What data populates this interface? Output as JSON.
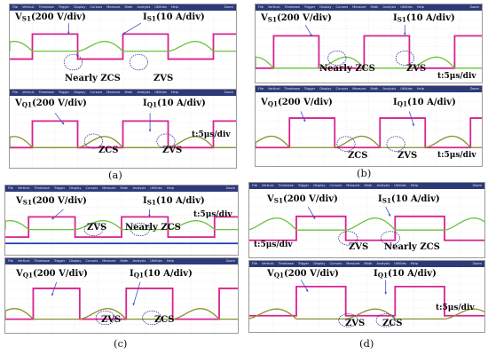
{
  "menu": {
    "items": [
      "File",
      "Vertical",
      "Timebase",
      "Trigger",
      "Display",
      "Cursors",
      "Measure",
      "Math",
      "Analysis",
      "Utilities",
      "Help"
    ],
    "zoom": "Zoom"
  },
  "panels": [
    {
      "label": "(a)",
      "scopes": [
        {
          "v_main": "V",
          "v_sub": "S1",
          "v_rest": "(200 V/div)",
          "i_main": "I",
          "i_sub": "S1",
          "i_rest": "(10 A/div)",
          "ann1": "Nearly ZCS",
          "ann2": "ZVS",
          "time": ""
        },
        {
          "v_main": "V",
          "v_sub": "Q1",
          "v_rest": "(200 V/div)",
          "i_main": "I",
          "i_sub": "Q1",
          "i_rest": "(10 A/div)",
          "ann1": "ZCS",
          "ann2": "ZVS",
          "time": "t:5μs/div"
        }
      ]
    },
    {
      "label": "(b)",
      "scopes": [
        {
          "v_main": "V",
          "v_sub": "S1",
          "v_rest": "(200 V/div)",
          "i_main": "I",
          "i_sub": "S1",
          "i_rest": "(10 A/div)",
          "ann1": "Nearly ZCS",
          "ann2": "ZVS",
          "time": "t:5μs/div"
        },
        {
          "v_main": "V",
          "v_sub": "Q1",
          "v_rest": "(200 V/div)",
          "i_main": "I",
          "i_sub": "Q1",
          "i_rest": "(10 A/div)",
          "ann1": "ZCS",
          "ann2": "ZVS",
          "time": "t:5μs/div"
        }
      ]
    },
    {
      "label": "(c)",
      "scopes": [
        {
          "v_main": "V",
          "v_sub": "S1",
          "v_rest": "(200 V/div)",
          "i_main": "I",
          "i_sub": "S1",
          "i_rest": "(10 A/div)",
          "ann1": "ZVS",
          "ann2": "Nearly ZCS",
          "time": "t:5μs/div"
        },
        {
          "v_main": "V",
          "v_sub": "Q1",
          "v_rest": "(200 V/div)",
          "i_main": "I",
          "i_sub": "Q1",
          "i_rest": "(10 A/div)",
          "ann1": "ZVS",
          "ann2": "ZCS",
          "time": ""
        }
      ]
    },
    {
      "label": "(d)",
      "scopes": [
        {
          "v_main": "V",
          "v_sub": "S1",
          "v_rest": "(200 V/div)",
          "i_main": "I",
          "i_sub": "S1",
          "i_rest": "(10 A/div)",
          "ann1": "ZVS",
          "ann2": "Nearly ZCS",
          "time": "t:5μs/div"
        },
        {
          "v_main": "V",
          "v_sub": "Q1",
          "v_rest": "(200 V/div)",
          "i_main": "I",
          "i_sub": "Q1",
          "i_rest": "(10 A/div)",
          "ann1": "ZVS",
          "ann2": "ZCS",
          "time": "t:5μs/div"
        }
      ]
    }
  ],
  "colors": {
    "voltage": "#d8238f",
    "current": "#6bc23a",
    "current_dark": "#8a8f2a",
    "blue_axis": "#1f3fb0",
    "menubar": "#2e3a78",
    "grid": "#c9c9c9",
    "arrow": "#3a4fc9"
  },
  "icons": {
    "callout": "dashed-ellipse-icon"
  }
}
